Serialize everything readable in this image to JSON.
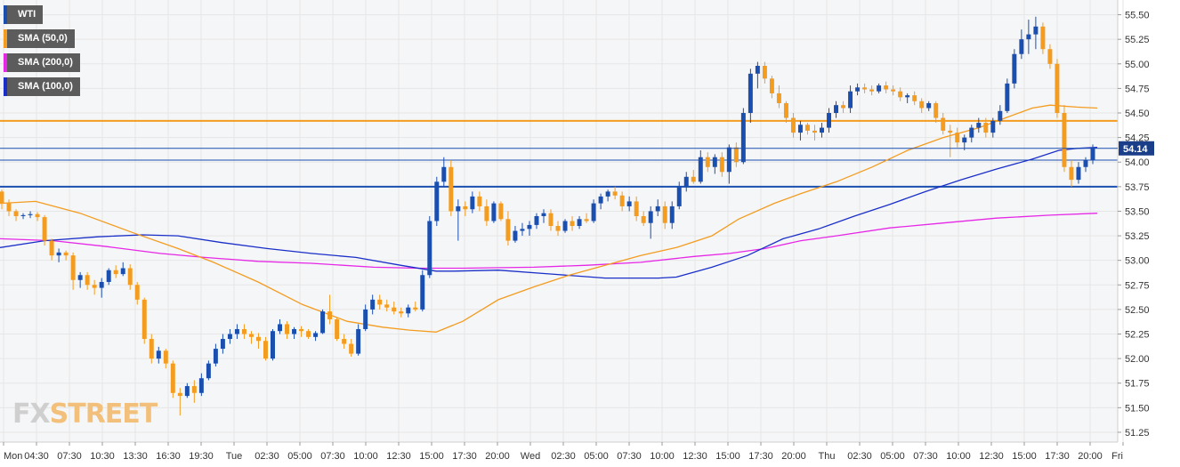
{
  "legend": [
    {
      "label": "WTI",
      "color": "#1a4fb0"
    },
    {
      "label": "SMA (50,0)",
      "color": "#f39c1f"
    },
    {
      "label": "SMA (200,0)",
      "color": "#e627e6"
    },
    {
      "label": "SMA (100,0)",
      "color": "#1a2fc8"
    }
  ],
  "brand": {
    "part1": "FX",
    "part2": "STREET"
  },
  "colors": {
    "up": "#1a4fb0",
    "down": "#f39c1f",
    "sma50": "#f39c1f",
    "sma100": "#1a2fc8",
    "sma200": "#e627e6",
    "hline_orange": "#f39c1f",
    "hline_blue": "#1a4fb0",
    "grid": "#e6e6e6",
    "plot_bg": "#f5f6f8"
  },
  "chart_data": {
    "type": "candlestick",
    "title": "",
    "ylim": [
      51.15,
      55.65
    ],
    "y_ticks": [
      "55.50",
      "55.25",
      "55.00",
      "54.75",
      "54.50",
      "54.25",
      "54.00",
      "53.75",
      "53.50",
      "53.25",
      "53.00",
      "52.75",
      "52.50",
      "52.25",
      "52.00",
      "51.75",
      "51.50",
      "51.25"
    ],
    "x_labels": [
      "Mon",
      "04:30",
      "07:30",
      "10:30",
      "13:30",
      "16:30",
      "19:30",
      "Tue",
      "02:30",
      "05:00",
      "07:30",
      "10:00",
      "12:30",
      "15:00",
      "17:30",
      "20:00",
      "Wed",
      "02:30",
      "05:00",
      "07:30",
      "10:00",
      "12:30",
      "15:00",
      "17:30",
      "20:00",
      "Thu",
      "02:30",
      "05:00",
      "07:30",
      "10:00",
      "12:30",
      "15:00",
      "17:30",
      "20:00",
      "Fri"
    ],
    "current_price": "54.14",
    "horizontal_levels": [
      {
        "value": 54.42,
        "color": "orange"
      },
      {
        "value": 54.02,
        "color": "blue"
      },
      {
        "value": 53.75,
        "color": "blue"
      }
    ],
    "candles": [
      [
        53.7,
        53.72,
        53.52,
        53.58
      ],
      [
        53.58,
        53.62,
        53.45,
        53.5
      ],
      [
        53.5,
        53.52,
        53.4,
        53.45
      ],
      [
        53.45,
        53.48,
        53.42,
        53.46
      ],
      [
        53.46,
        53.5,
        53.43,
        53.47
      ],
      [
        53.47,
        53.49,
        53.4,
        53.44
      ],
      [
        53.44,
        53.46,
        53.15,
        53.2
      ],
      [
        53.2,
        53.22,
        53.0,
        53.05
      ],
      [
        53.05,
        53.12,
        52.98,
        53.08
      ],
      [
        53.08,
        53.1,
        53.0,
        53.05
      ],
      [
        53.05,
        53.08,
        52.7,
        52.8
      ],
      [
        52.8,
        52.88,
        52.72,
        52.85
      ],
      [
        52.85,
        52.88,
        52.7,
        52.75
      ],
      [
        52.75,
        52.8,
        52.65,
        52.72
      ],
      [
        52.72,
        52.82,
        52.62,
        52.78
      ],
      [
        52.78,
        52.92,
        52.75,
        52.9
      ],
      [
        52.9,
        52.95,
        52.82,
        52.86
      ],
      [
        52.86,
        52.98,
        52.84,
        52.92
      ],
      [
        52.92,
        52.96,
        52.7,
        52.75
      ],
      [
        52.75,
        52.78,
        52.55,
        52.6
      ],
      [
        52.6,
        52.62,
        52.15,
        52.2
      ],
      [
        52.2,
        52.25,
        51.95,
        52.0
      ],
      [
        52.0,
        52.12,
        51.95,
        52.08
      ],
      [
        52.08,
        52.1,
        51.9,
        51.95
      ],
      [
        51.95,
        51.98,
        51.6,
        51.65
      ],
      [
        51.65,
        51.7,
        51.42,
        51.62
      ],
      [
        51.62,
        51.75,
        51.6,
        51.72
      ],
      [
        51.72,
        51.78,
        51.55,
        51.65
      ],
      [
        51.65,
        51.85,
        51.62,
        51.8
      ],
      [
        51.8,
        51.98,
        51.78,
        51.95
      ],
      [
        51.95,
        52.15,
        51.92,
        52.1
      ],
      [
        52.1,
        52.25,
        52.05,
        52.2
      ],
      [
        52.2,
        52.3,
        52.15,
        52.25
      ],
      [
        52.25,
        52.35,
        52.2,
        52.3
      ],
      [
        52.3,
        52.35,
        52.2,
        52.25
      ],
      [
        52.25,
        52.28,
        52.15,
        52.22
      ],
      [
        52.22,
        52.26,
        52.1,
        52.18
      ],
      [
        52.18,
        52.22,
        51.98,
        52.0
      ],
      [
        52.0,
        52.3,
        51.98,
        52.28
      ],
      [
        52.28,
        52.4,
        52.25,
        52.35
      ],
      [
        52.35,
        52.38,
        52.2,
        52.25
      ],
      [
        52.25,
        52.32,
        52.2,
        52.3
      ],
      [
        52.3,
        52.33,
        52.22,
        52.28
      ],
      [
        52.28,
        52.3,
        52.2,
        52.22
      ],
      [
        52.22,
        52.28,
        52.18,
        52.26
      ],
      [
        52.26,
        52.5,
        52.25,
        52.48
      ],
      [
        52.48,
        52.65,
        52.35,
        52.4
      ],
      [
        52.4,
        52.42,
        52.18,
        52.2
      ],
      [
        52.2,
        52.25,
        52.1,
        52.15
      ],
      [
        52.15,
        52.2,
        52.02,
        52.05
      ],
      [
        52.05,
        52.35,
        52.03,
        52.3
      ],
      [
        52.3,
        52.55,
        52.28,
        52.5
      ],
      [
        52.5,
        52.65,
        52.45,
        52.6
      ],
      [
        52.6,
        52.65,
        52.5,
        52.55
      ],
      [
        52.55,
        52.6,
        52.48,
        52.52
      ],
      [
        52.52,
        52.58,
        52.45,
        52.48
      ],
      [
        52.48,
        52.52,
        52.42,
        52.46
      ],
      [
        52.46,
        52.55,
        52.42,
        52.52
      ],
      [
        52.52,
        52.58,
        52.48,
        52.5
      ],
      [
        52.5,
        52.9,
        52.48,
        52.85
      ],
      [
        52.85,
        53.45,
        52.82,
        53.4
      ],
      [
        53.4,
        53.85,
        53.35,
        53.8
      ],
      [
        53.8,
        54.05,
        53.75,
        53.95
      ],
      [
        53.95,
        54.02,
        53.45,
        53.5
      ],
      [
        53.5,
        53.62,
        53.2,
        53.55
      ],
      [
        53.55,
        53.6,
        53.45,
        53.52
      ],
      [
        53.52,
        53.7,
        53.48,
        53.65
      ],
      [
        53.65,
        53.7,
        53.5,
        53.55
      ],
      [
        53.55,
        53.62,
        53.35,
        53.4
      ],
      [
        53.4,
        53.6,
        53.38,
        53.58
      ],
      [
        53.58,
        53.6,
        53.4,
        53.42
      ],
      [
        53.42,
        53.5,
        53.15,
        53.2
      ],
      [
        53.2,
        53.35,
        53.18,
        53.3
      ],
      [
        53.3,
        53.38,
        53.25,
        53.32
      ],
      [
        53.32,
        53.4,
        53.25,
        53.36
      ],
      [
        53.36,
        53.48,
        53.32,
        53.45
      ],
      [
        53.45,
        53.52,
        53.38,
        53.48
      ],
      [
        53.48,
        53.52,
        53.3,
        53.35
      ],
      [
        53.35,
        53.4,
        53.25,
        53.3
      ],
      [
        53.3,
        53.42,
        53.28,
        53.4
      ],
      [
        53.4,
        53.45,
        53.3,
        53.35
      ],
      [
        53.35,
        53.45,
        53.32,
        53.42
      ],
      [
        53.42,
        53.48,
        53.38,
        53.4
      ],
      [
        53.4,
        53.62,
        53.38,
        53.58
      ],
      [
        53.58,
        53.68,
        53.52,
        53.65
      ],
      [
        53.65,
        53.72,
        53.6,
        53.7
      ],
      [
        53.7,
        53.75,
        53.62,
        53.66
      ],
      [
        53.66,
        53.7,
        53.5,
        53.55
      ],
      [
        53.55,
        53.65,
        53.5,
        53.6
      ],
      [
        53.6,
        53.65,
        53.4,
        53.45
      ],
      [
        53.45,
        53.5,
        53.35,
        53.38
      ],
      [
        53.38,
        53.55,
        53.22,
        53.5
      ],
      [
        53.5,
        53.62,
        53.45,
        53.55
      ],
      [
        53.55,
        53.6,
        53.32,
        53.38
      ],
      [
        53.38,
        53.6,
        53.32,
        53.55
      ],
      [
        53.55,
        53.8,
        53.52,
        53.75
      ],
      [
        53.75,
        53.9,
        53.7,
        53.85
      ],
      [
        53.85,
        53.92,
        53.78,
        53.8
      ],
      [
        53.8,
        54.12,
        53.78,
        54.05
      ],
      [
        54.05,
        54.1,
        53.9,
        53.95
      ],
      [
        53.95,
        54.08,
        53.88,
        54.05
      ],
      [
        54.05,
        54.1,
        53.85,
        53.9
      ],
      [
        53.9,
        54.18,
        53.78,
        54.15
      ],
      [
        54.15,
        54.2,
        53.95,
        54.0
      ],
      [
        54.0,
        54.55,
        53.98,
        54.5
      ],
      [
        54.5,
        54.95,
        54.4,
        54.9
      ],
      [
        54.9,
        55.02,
        54.75,
        54.98
      ],
      [
        54.98,
        55.02,
        54.8,
        54.85
      ],
      [
        54.85,
        54.88,
        54.65,
        54.7
      ],
      [
        54.7,
        54.78,
        54.55,
        54.6
      ],
      [
        54.6,
        54.62,
        54.4,
        54.45
      ],
      [
        54.45,
        54.5,
        54.25,
        54.3
      ],
      [
        54.3,
        54.42,
        54.22,
        54.38
      ],
      [
        54.38,
        54.4,
        54.28,
        54.32
      ],
      [
        54.32,
        54.38,
        54.22,
        54.3
      ],
      [
        54.3,
        54.4,
        54.25,
        54.35
      ],
      [
        54.35,
        54.55,
        54.3,
        54.5
      ],
      [
        54.5,
        54.62,
        54.45,
        54.58
      ],
      [
        54.58,
        54.62,
        54.5,
        54.55
      ],
      [
        54.55,
        54.78,
        54.5,
        54.72
      ],
      [
        54.72,
        54.8,
        54.68,
        54.76
      ],
      [
        54.76,
        54.8,
        54.7,
        54.74
      ],
      [
        54.74,
        54.78,
        54.68,
        54.72
      ],
      [
        54.72,
        54.8,
        54.7,
        54.78
      ],
      [
        54.78,
        54.82,
        54.7,
        54.74
      ],
      [
        54.74,
        54.78,
        54.68,
        54.72
      ],
      [
        54.72,
        54.76,
        54.62,
        54.66
      ],
      [
        54.66,
        54.7,
        54.6,
        54.68
      ],
      [
        54.68,
        54.72,
        54.58,
        54.62
      ],
      [
        54.62,
        54.65,
        54.5,
        54.55
      ],
      [
        54.55,
        54.62,
        54.52,
        54.6
      ],
      [
        54.6,
        54.62,
        54.4,
        54.45
      ],
      [
        54.45,
        54.5,
        54.28,
        54.32
      ],
      [
        54.32,
        54.38,
        54.05,
        54.3
      ],
      [
        54.3,
        54.35,
        54.15,
        54.2
      ],
      [
        54.2,
        54.28,
        54.12,
        54.25
      ],
      [
        54.25,
        54.38,
        54.2,
        54.35
      ],
      [
        54.35,
        54.45,
        54.3,
        54.4
      ],
      [
        54.4,
        54.45,
        54.25,
        54.3
      ],
      [
        54.3,
        54.45,
        54.25,
        54.42
      ],
      [
        54.42,
        54.58,
        54.38,
        54.52
      ],
      [
        54.52,
        54.85,
        54.5,
        54.8
      ],
      [
        54.8,
        55.15,
        54.75,
        55.1
      ],
      [
        55.1,
        55.35,
        55.05,
        55.25
      ],
      [
        55.25,
        55.45,
        55.1,
        55.3
      ],
      [
        55.3,
        55.48,
        55.15,
        55.38
      ],
      [
        55.38,
        55.42,
        55.1,
        55.15
      ],
      [
        55.15,
        55.2,
        54.95,
        55.0
      ],
      [
        55.0,
        55.05,
        54.45,
        54.5
      ],
      [
        54.5,
        54.58,
        53.9,
        53.95
      ],
      [
        53.95,
        54.02,
        53.75,
        53.82
      ],
      [
        53.82,
        54.0,
        53.78,
        53.95
      ],
      [
        53.95,
        54.05,
        53.9,
        54.02
      ],
      [
        54.02,
        54.18,
        53.98,
        54.14
      ]
    ],
    "sma50": [
      [
        0,
        53.58
      ],
      [
        40,
        53.6
      ],
      [
        90,
        53.48
      ],
      [
        150,
        53.28
      ],
      [
        200,
        53.12
      ],
      [
        240,
        52.98
      ],
      [
        290,
        52.78
      ],
      [
        340,
        52.55
      ],
      [
        390,
        52.38
      ],
      [
        430,
        52.32
      ],
      [
        460,
        52.29
      ],
      [
        490,
        52.27
      ],
      [
        520,
        52.38
      ],
      [
        560,
        52.6
      ],
      [
        600,
        52.73
      ],
      [
        640,
        52.85
      ],
      [
        680,
        52.95
      ],
      [
        720,
        53.05
      ],
      [
        760,
        53.13
      ],
      [
        800,
        53.25
      ],
      [
        830,
        53.42
      ],
      [
        870,
        53.58
      ],
      [
        900,
        53.68
      ],
      [
        940,
        53.8
      ],
      [
        980,
        53.95
      ],
      [
        1020,
        54.12
      ],
      [
        1060,
        54.25
      ],
      [
        1100,
        54.35
      ],
      [
        1130,
        54.45
      ],
      [
        1160,
        54.55
      ],
      [
        1180,
        54.58
      ],
      [
        1210,
        54.56
      ],
      [
        1233,
        54.55
      ]
    ],
    "sma100": [
      [
        0,
        53.13
      ],
      [
        50,
        53.2
      ],
      [
        110,
        53.24
      ],
      [
        160,
        53.26
      ],
      [
        200,
        53.25
      ],
      [
        250,
        53.18
      ],
      [
        300,
        53.12
      ],
      [
        350,
        53.07
      ],
      [
        400,
        53.03
      ],
      [
        450,
        52.95
      ],
      [
        490,
        52.89
      ],
      [
        510,
        52.89
      ],
      [
        560,
        52.9
      ],
      [
        620,
        52.86
      ],
      [
        680,
        52.82
      ],
      [
        740,
        52.82
      ],
      [
        760,
        52.83
      ],
      [
        800,
        52.93
      ],
      [
        840,
        53.05
      ],
      [
        880,
        53.22
      ],
      [
        920,
        53.32
      ],
      [
        960,
        53.45
      ],
      [
        1000,
        53.57
      ],
      [
        1040,
        53.7
      ],
      [
        1080,
        53.82
      ],
      [
        1120,
        53.93
      ],
      [
        1160,
        54.03
      ],
      [
        1190,
        54.12
      ],
      [
        1210,
        54.14
      ],
      [
        1233,
        54.15
      ]
    ],
    "sma200": [
      [
        0,
        53.22
      ],
      [
        60,
        53.2
      ],
      [
        120,
        53.14
      ],
      [
        180,
        53.07
      ],
      [
        230,
        53.03
      ],
      [
        290,
        52.99
      ],
      [
        350,
        52.97
      ],
      [
        420,
        52.93
      ],
      [
        470,
        52.92
      ],
      [
        520,
        52.92
      ],
      [
        600,
        52.93
      ],
      [
        660,
        52.95
      ],
      [
        720,
        52.98
      ],
      [
        780,
        53.04
      ],
      [
        820,
        53.07
      ],
      [
        860,
        53.12
      ],
      [
        900,
        53.2
      ],
      [
        940,
        53.25
      ],
      [
        1000,
        53.33
      ],
      [
        1060,
        53.38
      ],
      [
        1120,
        53.43
      ],
      [
        1180,
        53.46
      ],
      [
        1233,
        53.48
      ]
    ]
  }
}
